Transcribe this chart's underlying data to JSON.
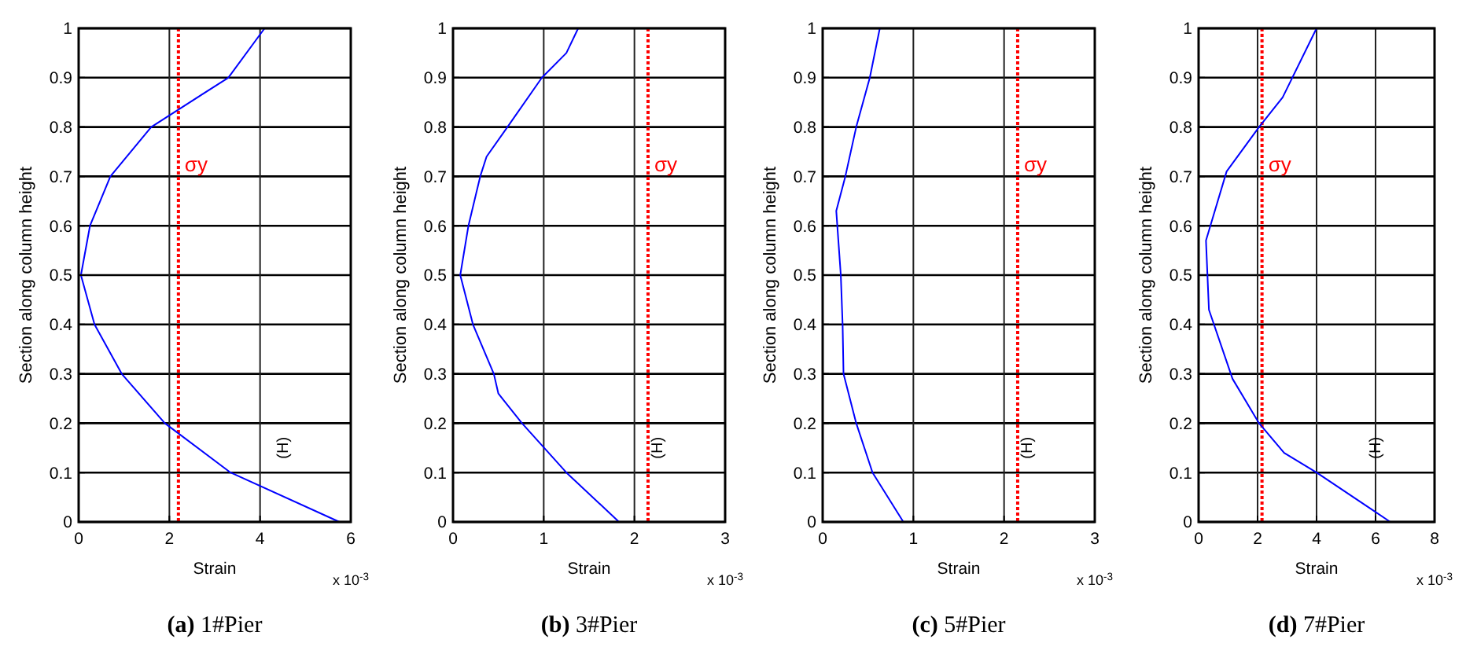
{
  "chart_data": [
    {
      "type": "line",
      "title": "(a) 1#Pier",
      "xlabel": "Strain",
      "ylabel": "Section along column height",
      "annotations": [
        "x 10$^{-3}$",
        "(H)"
      ],
      "grid": true,
      "xlim": [
        0,
        6
      ],
      "xticks": [
        0,
        2,
        4,
        6
      ],
      "ylim": [
        0,
        1
      ],
      "yticks": [
        0,
        0.1,
        0.2,
        0.3,
        0.4,
        0.5,
        0.6,
        0.7,
        0.8,
        0.9,
        1
      ],
      "ref_lines": [
        {
          "axis": "x",
          "value": 2.2,
          "label": "σy",
          "color": "#ff0000",
          "line_style": "dotted"
        }
      ],
      "series": [
        {
          "color": "#0000ff",
          "x": [
            5.75,
            3.35,
            1.9,
            0.95,
            0.35,
            0.05,
            0.25,
            0.7,
            1.6,
            3.3,
            4.1
          ],
          "values": [
            0,
            0.1,
            0.2,
            0.3,
            0.4,
            0.5,
            0.6,
            0.7,
            0.8,
            0.9,
            1
          ]
        }
      ]
    },
    {
      "type": "line",
      "title": "(b) 3#Pier",
      "xlabel": "Strain",
      "ylabel": "Section along column height",
      "annotations": [
        "x 10$^{-3}$",
        "(H)"
      ],
      "grid": true,
      "xlim": [
        0,
        3
      ],
      "xticks": [
        0,
        1,
        2,
        3
      ],
      "ylim": [
        0,
        1
      ],
      "yticks": [
        0,
        0.1,
        0.2,
        0.3,
        0.4,
        0.5,
        0.6,
        0.7,
        0.8,
        0.9,
        1
      ],
      "ref_lines": [
        {
          "axis": "x",
          "value": 2.15,
          "label": "σy",
          "color": "#ff0000",
          "line_style": "dotted"
        }
      ],
      "series": [
        {
          "color": "#0000ff",
          "x": [
            1.83,
            1.25,
            0.76,
            0.5,
            0.45,
            0.22,
            0.08,
            0.17,
            0.3,
            0.37,
            0.6,
            0.98,
            1.25,
            1.38
          ],
          "values": [
            0,
            0.1,
            0.2,
            0.26,
            0.3,
            0.4,
            0.5,
            0.6,
            0.7,
            0.74,
            0.8,
            0.9,
            0.95,
            1
          ]
        }
      ]
    },
    {
      "type": "line",
      "title": "(c) 5#Pier",
      "xlabel": "Strain",
      "ylabel": "Section along column height",
      "annotations": [
        "x 10$^{-3}$",
        "(H)"
      ],
      "grid": true,
      "xlim": [
        0,
        3
      ],
      "xticks": [
        0,
        1,
        2,
        3
      ],
      "ylim": [
        0,
        1
      ],
      "yticks": [
        0,
        0.1,
        0.2,
        0.3,
        0.4,
        0.5,
        0.6,
        0.7,
        0.8,
        0.9,
        1
      ],
      "ref_lines": [
        {
          "axis": "x",
          "value": 2.15,
          "label": "σy",
          "color": "#ff0000",
          "line_style": "dotted"
        }
      ],
      "series": [
        {
          "color": "#0000ff",
          "x": [
            0.89,
            0.55,
            0.37,
            0.23,
            0.22,
            0.2,
            0.15,
            0.25,
            0.37,
            0.52,
            0.63
          ],
          "values": [
            0,
            0.1,
            0.2,
            0.3,
            0.4,
            0.5,
            0.63,
            0.7,
            0.8,
            0.9,
            1
          ]
        }
      ]
    },
    {
      "type": "line",
      "title": "(d) 7#Pier",
      "xlabel": "Strain",
      "ylabel": "Section along column height",
      "annotations": [
        "x 10$^{-3}$",
        "(H)"
      ],
      "grid": true,
      "xlim": [
        0,
        8
      ],
      "xticks": [
        0,
        2,
        4,
        6,
        8
      ],
      "ylim": [
        0,
        1
      ],
      "yticks": [
        0,
        0.1,
        0.2,
        0.3,
        0.4,
        0.5,
        0.6,
        0.7,
        0.8,
        0.9,
        1
      ],
      "ref_lines": [
        {
          "axis": "x",
          "value": 2.15,
          "label": "σy",
          "color": "#ff0000",
          "line_style": "dotted"
        }
      ],
      "series": [
        {
          "color": "#0000ff",
          "x": [
            6.5,
            6,
            4,
            2.9,
            2.05,
            1.15,
            0.35,
            0.25,
            0.95,
            2.05,
            2.85,
            4
          ],
          "values": [
            0,
            0.02,
            0.1,
            0.14,
            0.2,
            0.29,
            0.43,
            0.57,
            0.71,
            0.8,
            0.86,
            1
          ]
        }
      ]
    }
  ]
}
